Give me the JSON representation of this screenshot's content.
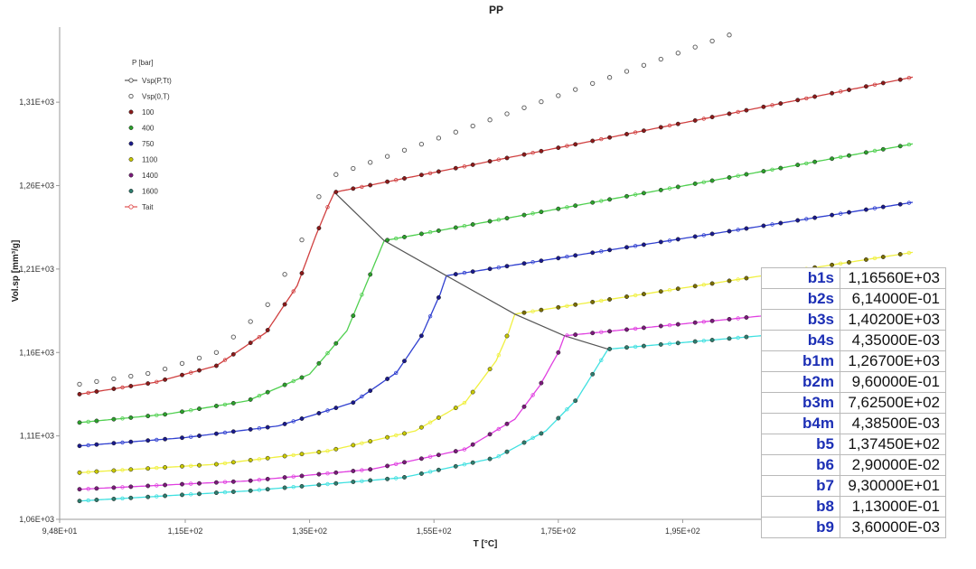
{
  "chart_data": {
    "type": "scatter",
    "title": "PP",
    "xlabel": "T [°C]",
    "ylabel": "Vol.sp [mm³/g]",
    "xlim": [
      94.8,
      232
    ],
    "ylim": [
      1060,
      1355
    ],
    "xticks": [
      94.8,
      115,
      135,
      155,
      175,
      195,
      215
    ],
    "xtick_labels": [
      "9,48E+01",
      "1,15E+02",
      "1,35E+02",
      "1,55E+02",
      "1,75E+02",
      "1,95E+02",
      "2,15E+02"
    ],
    "yticks": [
      1060,
      1110,
      1160,
      1210,
      1260,
      1310
    ],
    "ytick_labels": [
      "1,06E+03",
      "1,11E+03",
      "1,16E+03",
      "1,21E+03",
      "1,26E+03",
      "1,31E+03"
    ],
    "grid": false,
    "legend": {
      "position": "top-left",
      "title": "P [bar]",
      "entries": [
        {
          "label": "Vsp(P,Tt)",
          "color": "#555555",
          "marker": "line-open-circle"
        },
        {
          "label": "Vsp(0,T)",
          "color": "#555555",
          "marker": "open-circle"
        },
        {
          "label": "100",
          "color": "#8b1a1a",
          "marker": "dot"
        },
        {
          "label": "400",
          "color": "#2ca02c",
          "marker": "dot"
        },
        {
          "label": "750",
          "color": "#1a1a8b",
          "marker": "dot"
        },
        {
          "label": "1100",
          "color": "#c8c800",
          "marker": "dot"
        },
        {
          "label": "1400",
          "color": "#7a1a7a",
          "marker": "dot"
        },
        {
          "label": "1600",
          "color": "#2e7d6e",
          "marker": "dot"
        },
        {
          "label": "Tait",
          "color": "#e05050",
          "marker": "line-open-circle"
        }
      ]
    },
    "transition_curve": {
      "name": "Vsp(P,Tt)",
      "color": "#555555",
      "points": [
        [
          139,
          1256
        ],
        [
          147,
          1227
        ],
        [
          157,
          1206
        ],
        [
          168,
          1183
        ],
        [
          176,
          1170
        ],
        [
          183,
          1162
        ]
      ]
    },
    "series": [
      {
        "name": "Vsp(0,T)",
        "style": "open-circle",
        "color": "#555555",
        "tail_color": "#555555",
        "line_color": "#555555",
        "Tt": 138,
        "solid": [
          [
            98,
            1141
          ],
          [
            110,
            1148
          ],
          [
            120,
            1160
          ],
          [
            128,
            1187
          ],
          [
            133,
            1220
          ],
          [
            136,
            1250
          ],
          [
            137.5,
            1260
          ]
        ],
        "melt": [
          [
            138,
            1265
          ],
          [
            200,
            1347
          ]
        ],
        "extent": [
          98,
          203
        ]
      },
      {
        "name": "100",
        "color": "#8b1a1a",
        "tail_color": "#8b1a1a",
        "line_color": "#d04040",
        "Tt": 139,
        "solid": [
          [
            98,
            1135
          ],
          [
            110,
            1142
          ],
          [
            120,
            1152
          ],
          [
            128,
            1172
          ],
          [
            133,
            1200
          ],
          [
            136,
            1230
          ],
          [
            138,
            1248
          ],
          [
            139,
            1256
          ]
        ],
        "melt": [
          [
            139,
            1256
          ],
          [
            232,
            1325
          ]
        ],
        "extent": [
          98,
          232
        ]
      },
      {
        "name": "400",
        "color": "#2ca02c",
        "tail_color": "#2ca02c",
        "line_color": "#50d050",
        "Tt": 147,
        "solid": [
          [
            98,
            1118
          ],
          [
            112,
            1123
          ],
          [
            125,
            1131
          ],
          [
            135,
            1147
          ],
          [
            141,
            1173
          ],
          [
            144,
            1200
          ],
          [
            146,
            1218
          ],
          [
            147,
            1227
          ]
        ],
        "melt": [
          [
            147,
            1227
          ],
          [
            232,
            1285
          ]
        ],
        "extent": [
          98,
          232
        ]
      },
      {
        "name": "750",
        "color": "#1a1a8b",
        "tail_color": "#1a1a8b",
        "line_color": "#3040d0",
        "Tt": 157,
        "solid": [
          [
            98,
            1104
          ],
          [
            115,
            1109
          ],
          [
            130,
            1116
          ],
          [
            142,
            1130
          ],
          [
            149,
            1148
          ],
          [
            153,
            1170
          ],
          [
            156,
            1195
          ],
          [
            157,
            1206
          ]
        ],
        "melt": [
          [
            157,
            1206
          ],
          [
            232,
            1250
          ]
        ],
        "extent": [
          98,
          232
        ]
      },
      {
        "name": "1100",
        "color": "#c8c800",
        "tail_color": "#7a6d00",
        "line_color": "#f0f040",
        "Tt": 168,
        "solid": [
          [
            98,
            1088
          ],
          [
            120,
            1093
          ],
          [
            138,
            1101
          ],
          [
            152,
            1113
          ],
          [
            160,
            1130
          ],
          [
            165,
            1155
          ],
          [
            167,
            1172
          ],
          [
            168,
            1183
          ]
        ],
        "melt": [
          [
            168,
            1183
          ],
          [
            232,
            1220
          ]
        ],
        "extent": [
          98,
          232
        ]
      },
      {
        "name": "1400",
        "color": "#7a1a7a",
        "tail_color": "#7a1a7a",
        "line_color": "#e040e0",
        "Tt": 176,
        "solid": [
          [
            98,
            1078
          ],
          [
            125,
            1083
          ],
          [
            145,
            1090
          ],
          [
            160,
            1102
          ],
          [
            168,
            1120
          ],
          [
            172,
            1140
          ],
          [
            175,
            1160
          ],
          [
            176,
            1170
          ]
        ],
        "melt": [
          [
            176,
            1170
          ],
          [
            232,
            1191
          ]
        ],
        "extent": [
          98,
          232
        ]
      },
      {
        "name": "1600",
        "color": "#2e7d6e",
        "tail_color": "#2e7d6e",
        "line_color": "#40e0e0",
        "Tt": 183,
        "solid": [
          [
            98,
            1071
          ],
          [
            125,
            1077
          ],
          [
            150,
            1085
          ],
          [
            165,
            1097
          ],
          [
            173,
            1113
          ],
          [
            178,
            1132
          ],
          [
            181,
            1150
          ],
          [
            183,
            1162
          ]
        ],
        "melt": [
          [
            183,
            1162
          ],
          [
            232,
            1178
          ]
        ],
        "extent": [
          98,
          232
        ]
      }
    ]
  },
  "params": [
    {
      "name": "b1s",
      "value": "1,16560E+03"
    },
    {
      "name": "b2s",
      "value": "6,14000E-01"
    },
    {
      "name": "b3s",
      "value": "1,40200E+03"
    },
    {
      "name": "b4s",
      "value": "4,35000E-03"
    },
    {
      "name": "b1m",
      "value": "1,26700E+03"
    },
    {
      "name": "b2m",
      "value": "9,60000E-01"
    },
    {
      "name": "b3m",
      "value": "7,62500E+02"
    },
    {
      "name": "b4m",
      "value": "4,38500E-03"
    },
    {
      "name": "b5",
      "value": "1,37450E+02"
    },
    {
      "name": "b6",
      "value": "2,90000E-02"
    },
    {
      "name": "b7",
      "value": "9,30000E+01"
    },
    {
      "name": "b8",
      "value": "1,13000E-01"
    },
    {
      "name": "b9",
      "value": "3,60000E-03"
    }
  ]
}
